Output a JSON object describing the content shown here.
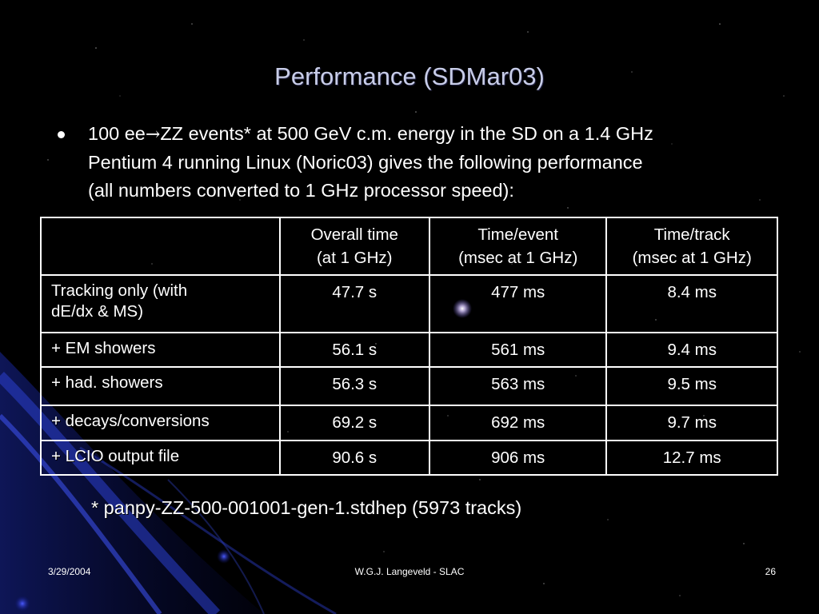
{
  "slide": {
    "title": "Performance (SDMar03)",
    "bullet": {
      "line1_pre": "100 ee",
      "arrow": "→",
      "line1_post": "ZZ events* at 500 GeV c.m. energy in the SD on a 1.4 GHz",
      "line2": "Pentium 4 running Linux (Noric03) gives the following performance",
      "line3": "(all numbers converted to 1 GHz processor speed):"
    },
    "table": {
      "headers": [
        {
          "line1": "",
          "line2": ""
        },
        {
          "line1": "Overall time",
          "line2": "(at 1 GHz)"
        },
        {
          "line1": "Time/event",
          "line2": "(msec at 1 GHz)"
        },
        {
          "line1": "Time/track",
          "line2": "(msec at 1 GHz)"
        }
      ],
      "rows": [
        {
          "label_line1": "Tracking only (with",
          "label_line2": "dE/dx & MS)",
          "overall": "47.7 s",
          "per_event": "477 ms",
          "per_track": "8.4 ms"
        },
        {
          "label_line1": "+ EM showers",
          "overall": "56.1 s",
          "per_event": "561 ms",
          "per_track": "9.4 ms"
        },
        {
          "label_line1": "+ had. showers",
          "overall": "56.3 s",
          "per_event": "563 ms",
          "per_track": "9.5 ms"
        },
        {
          "label_line1": "+ decays/conversions",
          "overall": "69.2 s",
          "per_event": "692 ms",
          "per_track": "9.7 ms"
        },
        {
          "label_line1": "+ LCIO output file",
          "overall": "90.6 s",
          "per_event": "906 ms",
          "per_track": "12.7 ms"
        }
      ]
    },
    "footnote": "* panpy-ZZ-500-001001-gen-1.stdhep (5973 tracks)",
    "footer": {
      "date": "3/29/2004",
      "author": "W.G.J. Langeveld - SLAC",
      "page": "26"
    }
  },
  "colors": {
    "background": "#000000",
    "title": "#c8cde8",
    "text": "#ffffff",
    "swoosh": "#1a2a9a"
  }
}
